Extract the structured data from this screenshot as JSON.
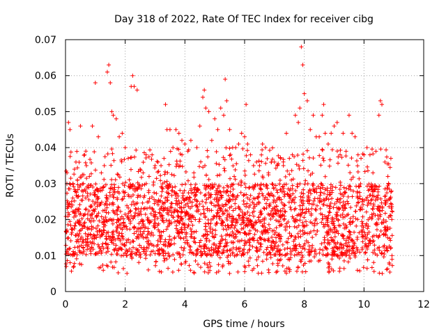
{
  "chart_data": {
    "type": "scatter",
    "title": "Day 318 of 2022, Rate Of TEC Index for receiver cibg",
    "xlabel": "GPS time / hours",
    "ylabel": "ROTI / TECUs",
    "xlim": [
      0,
      12
    ],
    "ylim": [
      0,
      0.07
    ],
    "xticks": [
      0,
      2,
      4,
      6,
      8,
      10,
      12
    ],
    "xtick_labels": [
      "0",
      "2",
      "4",
      "6",
      "8",
      "10",
      "12"
    ],
    "yticks": [
      0,
      0.01,
      0.02,
      0.03,
      0.04,
      0.05,
      0.06,
      0.07
    ],
    "ytick_labels": [
      "0",
      "0.01",
      "0.02",
      "0.03",
      "0.04",
      "0.05",
      "0.06",
      "0.07"
    ],
    "grid": true,
    "marker": "+",
    "marker_color": "#ff0000",
    "x_range_of_data": [
      0,
      10.95
    ],
    "typical_band": [
      0.01,
      0.03
    ],
    "series": [
      {
        "name": "ROTI",
        "x": [
          0.05,
          0.1,
          0.15,
          0.2,
          0.25,
          0.3,
          0.35,
          0.4,
          0.5,
          0.55,
          0.6,
          0.7,
          0.8,
          0.9,
          1.0,
          1.1,
          1.2,
          1.3,
          1.4,
          1.45,
          1.5,
          1.55,
          1.6,
          1.7,
          1.8,
          1.9,
          2.0,
          2.1,
          2.2,
          2.25,
          2.3,
          2.4,
          2.5,
          2.6,
          2.7,
          2.8,
          2.9,
          3.0,
          3.1,
          3.2,
          3.3,
          3.35,
          3.4,
          3.5,
          3.6,
          3.7,
          3.8,
          3.9,
          4.0,
          4.1,
          4.2,
          4.3,
          4.4,
          4.5,
          4.6,
          4.65,
          4.7,
          4.8,
          4.9,
          5.0,
          5.1,
          5.2,
          5.3,
          5.35,
          5.4,
          5.5,
          5.6,
          5.7,
          5.8,
          5.9,
          6.0,
          6.05,
          6.1,
          6.2,
          6.3,
          6.4,
          6.5,
          6.6,
          6.7,
          6.8,
          6.9,
          7.0,
          7.1,
          7.2,
          7.3,
          7.4,
          7.5,
          7.6,
          7.7,
          7.8,
          7.85,
          7.9,
          7.95,
          8.0,
          8.1,
          8.2,
          8.3,
          8.4,
          8.5,
          8.6,
          8.65,
          8.7,
          8.8,
          8.9,
          9.0,
          9.1,
          9.2,
          9.3,
          9.4,
          9.5,
          9.6,
          9.7,
          9.8,
          9.9,
          10.0,
          10.1,
          10.2,
          10.3,
          10.4,
          10.5,
          10.55,
          10.6,
          10.7,
          10.8,
          10.9
        ],
        "y": [
          0.033,
          0.047,
          0.045,
          0.025,
          0.03,
          0.034,
          0.036,
          0.031,
          0.046,
          0.028,
          0.03,
          0.035,
          0.032,
          0.046,
          0.058,
          0.043,
          0.033,
          0.035,
          0.061,
          0.063,
          0.058,
          0.05,
          0.049,
          0.048,
          0.043,
          0.044,
          0.04,
          0.037,
          0.057,
          0.06,
          0.057,
          0.056,
          0.034,
          0.033,
          0.038,
          0.032,
          0.038,
          0.035,
          0.036,
          0.035,
          0.037,
          0.052,
          0.045,
          0.045,
          0.04,
          0.045,
          0.044,
          0.042,
          0.041,
          0.039,
          0.042,
          0.033,
          0.04,
          0.046,
          0.054,
          0.056,
          0.051,
          0.05,
          0.042,
          0.048,
          0.045,
          0.051,
          0.049,
          0.059,
          0.053,
          0.045,
          0.04,
          0.04,
          0.041,
          0.044,
          0.043,
          0.052,
          0.041,
          0.038,
          0.035,
          0.036,
          0.035,
          0.041,
          0.04,
          0.033,
          0.036,
          0.036,
          0.035,
          0.037,
          0.035,
          0.044,
          0.037,
          0.038,
          0.049,
          0.047,
          0.051,
          0.068,
          0.063,
          0.055,
          0.053,
          0.045,
          0.049,
          0.043,
          0.043,
          0.049,
          0.052,
          0.044,
          0.041,
          0.044,
          0.046,
          0.047,
          0.038,
          0.044,
          0.039,
          0.049,
          0.044,
          0.043,
          0.038,
          0.037,
          0.038,
          0.04,
          0.038,
          0.033,
          0.039,
          0.049,
          0.053,
          0.052,
          0.036,
          0.032,
          0.037
        ]
      }
    ]
  }
}
